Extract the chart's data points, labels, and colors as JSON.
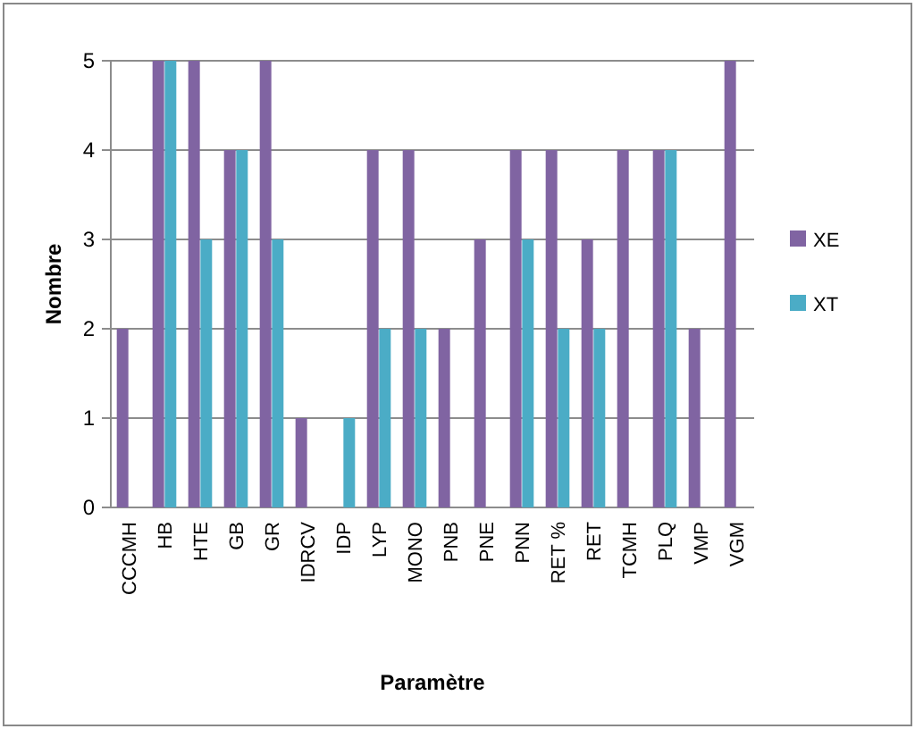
{
  "chart_data": {
    "type": "bar",
    "xlabel": "Paramètre",
    "ylabel": "Nombre",
    "categories": [
      "CCCMH",
      "HB",
      "HTE",
      "GB",
      "GR",
      "IDRCV",
      "IDP",
      "LYP",
      "MONO",
      "PNB",
      "PNE",
      "PNN",
      "RET %",
      "RET",
      "TCMH",
      "PLQ",
      "VMP",
      "VGM"
    ],
    "series": [
      {
        "name": "XE",
        "color": "#8064a2",
        "values": [
          2,
          5,
          5,
          4,
          5,
          1,
          0,
          4,
          4,
          2,
          3,
          4,
          4,
          3,
          4,
          4,
          2,
          5
        ]
      },
      {
        "name": "XT",
        "color": "#4bacc6",
        "values": [
          0,
          5,
          3,
          4,
          3,
          0,
          1,
          2,
          2,
          0,
          0,
          3,
          2,
          2,
          0,
          4,
          0,
          0
        ]
      }
    ],
    "ylim": [
      0,
      5
    ],
    "yticks": [
      0,
      1,
      2,
      3,
      4,
      5
    ],
    "grid": "y",
    "legend": "right"
  }
}
